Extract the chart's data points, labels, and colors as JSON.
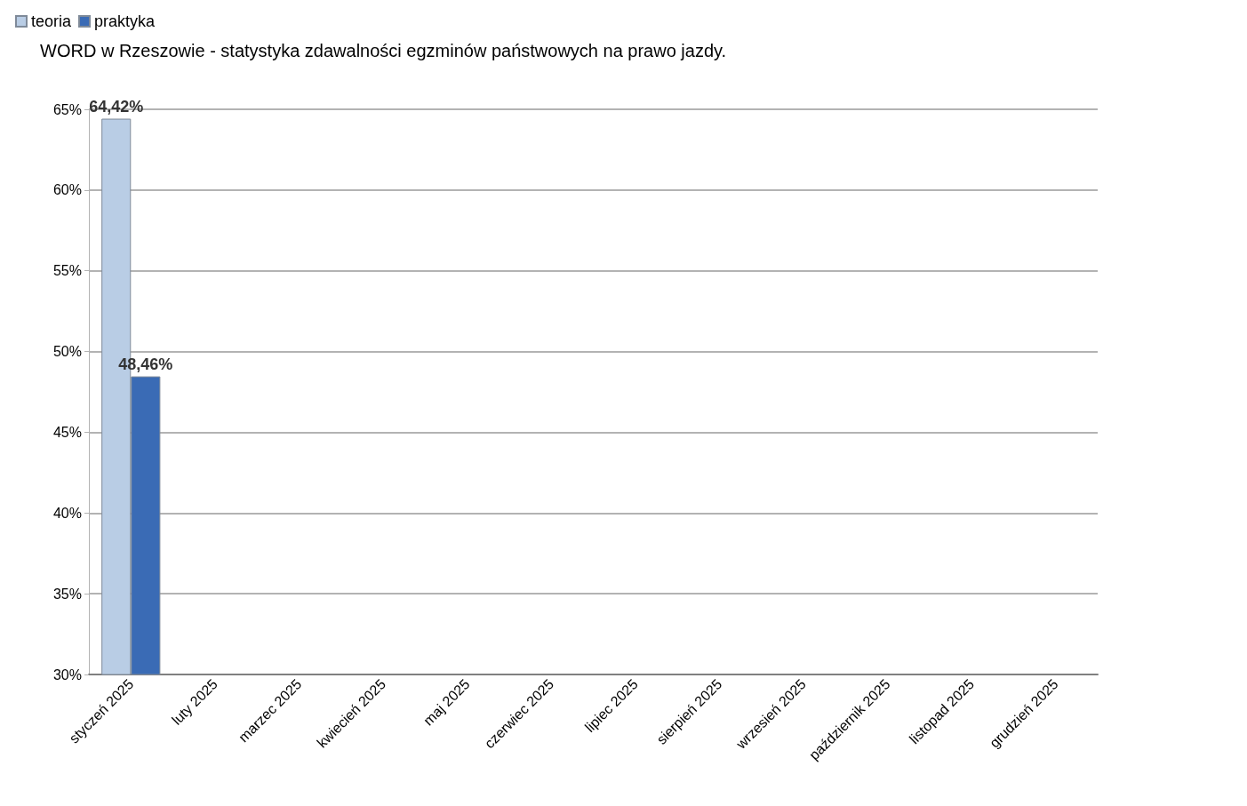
{
  "chart_data": {
    "type": "bar",
    "title": "WORD w Rzeszowie - statystyka zdawalności egzminów państwowych na prawo jazdy.",
    "categories": [
      "styczeń 2025",
      "luty 2025",
      "marzec 2025",
      "kwiecień 2025",
      "maj 2025",
      "czerwiec 2025",
      "lipiec 2025",
      "sierpień 2025",
      "wrzesień 2025",
      "październik 2025",
      "listopad 2025",
      "grudzień 2025"
    ],
    "series": [
      {
        "name": "teoria",
        "color": "#b9cde5",
        "values": [
          64.42,
          null,
          null,
          null,
          null,
          null,
          null,
          null,
          null,
          null,
          null,
          null
        ],
        "value_labels": [
          "64,42%",
          null,
          null,
          null,
          null,
          null,
          null,
          null,
          null,
          null,
          null,
          null
        ]
      },
      {
        "name": "praktyka",
        "color": "#3a6bb5",
        "values": [
          48.46,
          null,
          null,
          null,
          null,
          null,
          null,
          null,
          null,
          null,
          null,
          null
        ],
        "value_labels": [
          "48,46%",
          null,
          null,
          null,
          null,
          null,
          null,
          null,
          null,
          null,
          null,
          null
        ]
      }
    ],
    "ylim": [
      30,
      65
    ],
    "yticks": [
      {
        "value": 30,
        "label": "30%"
      },
      {
        "value": 35,
        "label": "35%"
      },
      {
        "value": 40,
        "label": "40%"
      },
      {
        "value": 45,
        "label": "45%"
      },
      {
        "value": 50,
        "label": "50%"
      },
      {
        "value": 55,
        "label": "55%"
      },
      {
        "value": 60,
        "label": "60%"
      },
      {
        "value": 65,
        "label": "65%"
      }
    ],
    "grid": "y",
    "legend": "top left"
  }
}
